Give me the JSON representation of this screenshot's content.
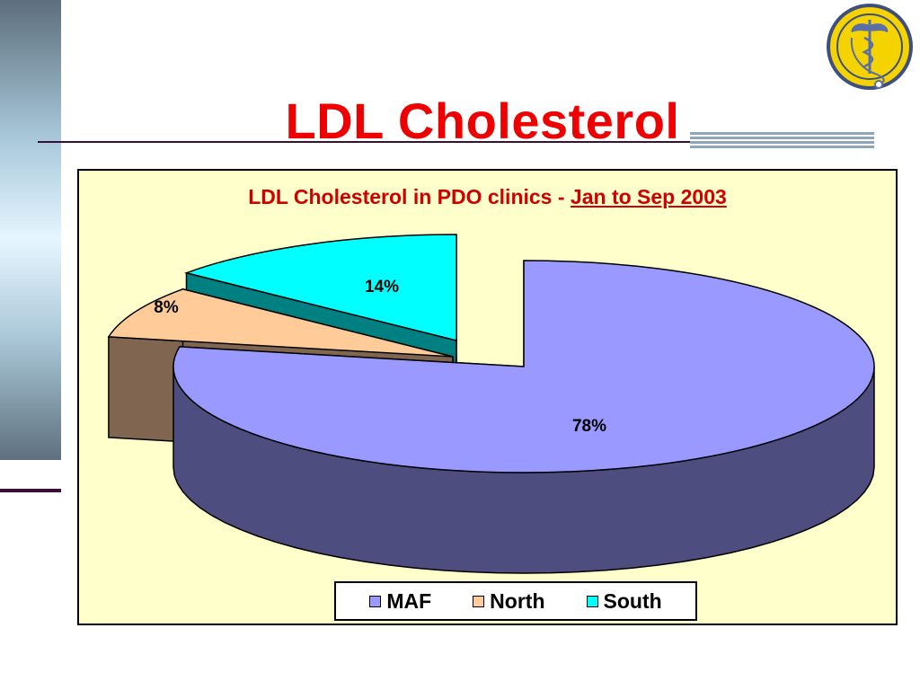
{
  "slide": {
    "title": "LDL Cholesterol"
  },
  "logo": {
    "icon": "caduceus-stethoscope-logo-icon",
    "colors": [
      "#f5d300",
      "#5a6fa8"
    ]
  },
  "chart_data": {
    "type": "pie",
    "title_prefix": "LDL Cholesterol in PDO clinics -",
    "title_period": "Jan to Sep 2003",
    "style": "3d-exploded",
    "categories": [
      "MAF",
      "North",
      "South"
    ],
    "values": [
      78,
      8,
      14
    ],
    "labels": [
      "78%",
      "8%",
      "14%"
    ],
    "colors": [
      "#9999ff",
      "#ffcc99",
      "#00ffff"
    ],
    "side_colors": [
      "#4d4d80",
      "#806650",
      "#008080"
    ],
    "legend_position": "bottom",
    "background": "#ffffcc"
  }
}
